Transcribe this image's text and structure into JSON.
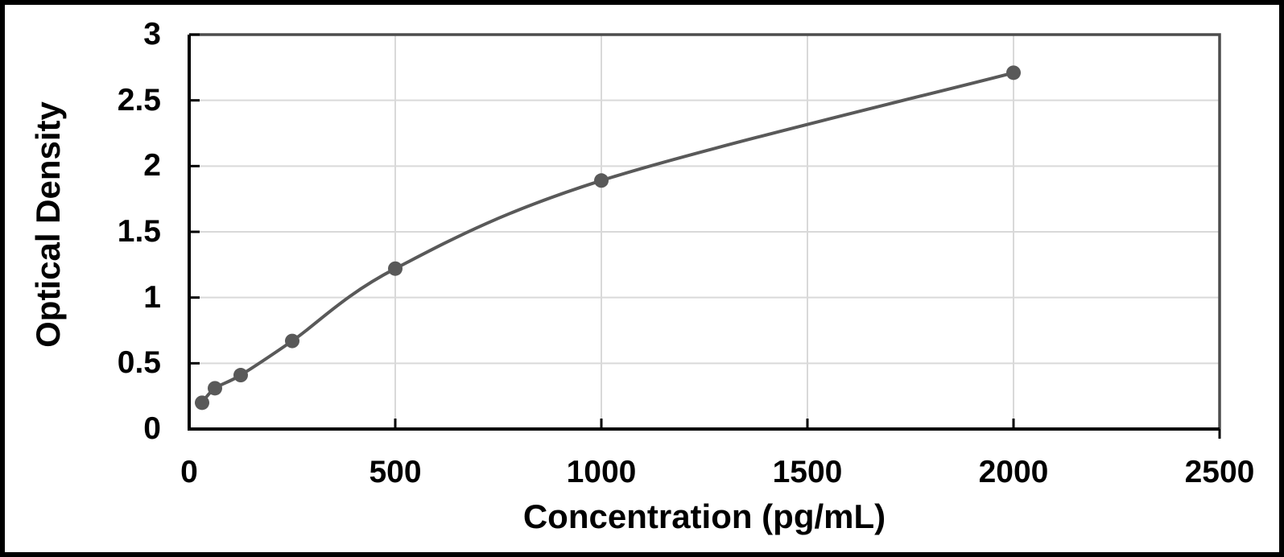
{
  "chart_data": {
    "type": "scatter",
    "title": "",
    "xlabel": "Concentration (pg/mL)",
    "ylabel": "Optical Density",
    "x": [
      31.25,
      62.5,
      125,
      250,
      500,
      1000,
      2000
    ],
    "y": [
      0.2,
      0.31,
      0.41,
      0.67,
      1.22,
      1.89,
      2.71
    ],
    "xlim": [
      0,
      2500
    ],
    "ylim": [
      0,
      3
    ],
    "xtick_labels": [
      "0",
      "500",
      "1000",
      "1500",
      "2000",
      "2500"
    ],
    "ytick_labels": [
      "0",
      "0.5",
      "1",
      "1.5",
      "2",
      "2.5",
      "3"
    ],
    "grid": true,
    "legend": false,
    "line_style": "smooth",
    "marker_style": "circle",
    "colors": {
      "series": "#595959",
      "gridline": "#d9d9d9",
      "axis": "#000000",
      "plot_border": "#4d4d4d",
      "frame": "#000000",
      "background": "#ffffff"
    }
  }
}
